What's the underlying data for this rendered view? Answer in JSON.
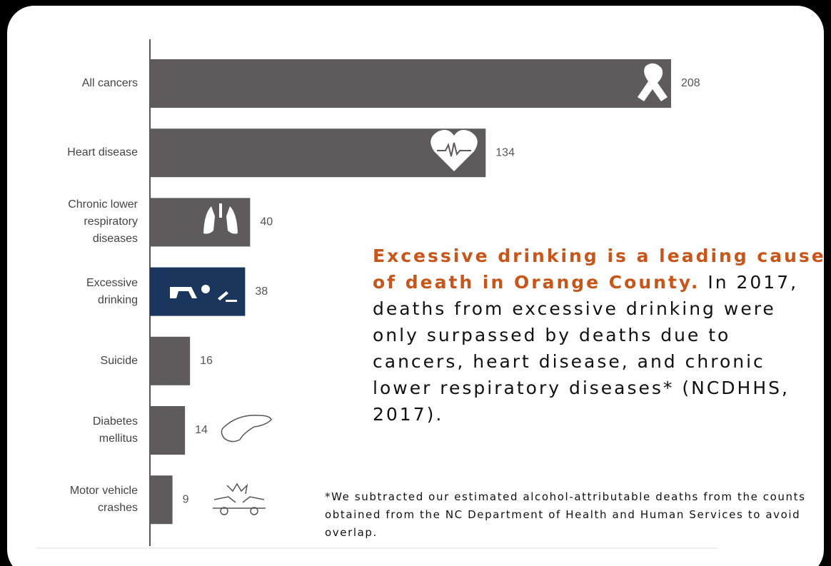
{
  "chart_data": {
    "type": "bar",
    "orientation": "horizontal",
    "categories": [
      "All cancers",
      "Heart disease",
      "Chronic lower\nrespiratory\ndiseases",
      "Excessive\ndrinking",
      "Suicide",
      "Diabetes\nmellitus",
      "Motor vehicle\ncrashes"
    ],
    "values": [
      208,
      134,
      40,
      38,
      16,
      14,
      9
    ],
    "colors": [
      "#5f5b5c",
      "#5f5b5c",
      "#5f5b5c",
      "#1b365d",
      "#5f5b5c",
      "#5f5b5c",
      "#5f5b5c"
    ],
    "annotation_lead": "Excessive drinking is a leading cause of death in Orange County.",
    "annotation_body": "In 2017, deaths from excessive drinking were only surpassed by deaths due to cancers, heart disease, and chronic lower respiratory diseases* (NCDHHS, 2017).",
    "footnote": "*We subtracted our estimated alcohol-attributable deaths from the counts obtained from the NC Department of Health and Human Services to avoid overlap."
  }
}
